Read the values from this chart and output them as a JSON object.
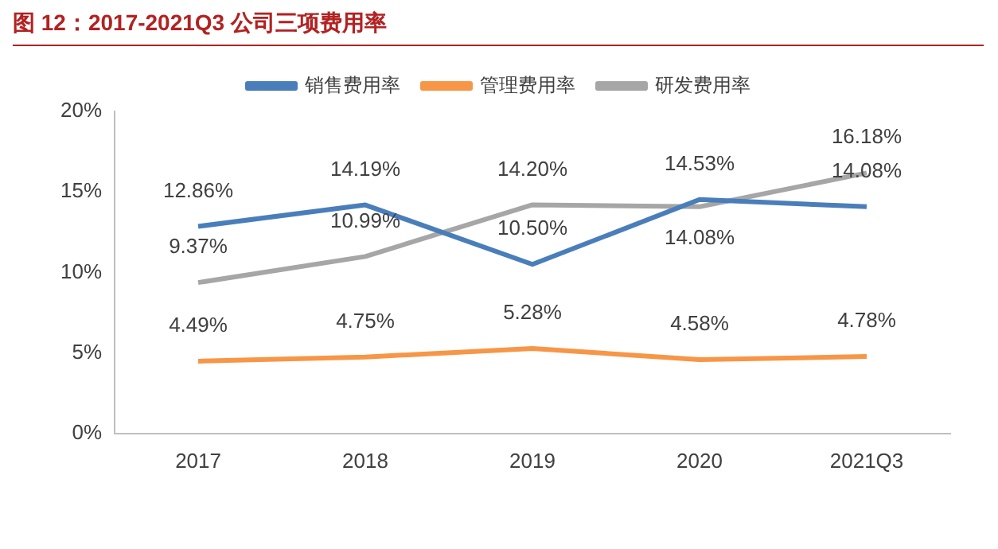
{
  "chart_data": {
    "type": "line",
    "title": "图 12：2017-2021Q3 公司三项费用率",
    "categories": [
      "2017",
      "2018",
      "2019",
      "2020",
      "2021Q3"
    ],
    "series": [
      {
        "name": "销售费用率",
        "color": "#4a7ebb",
        "values": [
          12.86,
          14.19,
          10.5,
          14.53,
          14.08
        ],
        "value_labels": [
          "12.86%",
          "14.19%",
          "10.50%",
          "14.53%",
          "14.08%"
        ]
      },
      {
        "name": "管理费用率",
        "color": "#f79646",
        "values": [
          4.49,
          4.75,
          5.28,
          4.58,
          4.78
        ],
        "value_labels": [
          "4.49%",
          "4.75%",
          "5.28%",
          "4.58%",
          "4.78%"
        ]
      },
      {
        "name": "研发费用率",
        "color": "#a6a6a6",
        "values": [
          9.37,
          10.99,
          14.2,
          14.08,
          16.18
        ],
        "value_labels": [
          "9.37%",
          "10.99%",
          "14.20%",
          "14.08%",
          "16.18%"
        ]
      }
    ],
    "ylim": [
      0,
      20
    ],
    "yticks": [
      {
        "value": 0,
        "label": "0%"
      },
      {
        "value": 5,
        "label": "5%"
      },
      {
        "value": 10,
        "label": "10%"
      },
      {
        "value": 15,
        "label": "15%"
      },
      {
        "value": 20,
        "label": "20%"
      }
    ],
    "grid": false,
    "legend": "top",
    "marker": "none",
    "line_style": "solid"
  }
}
